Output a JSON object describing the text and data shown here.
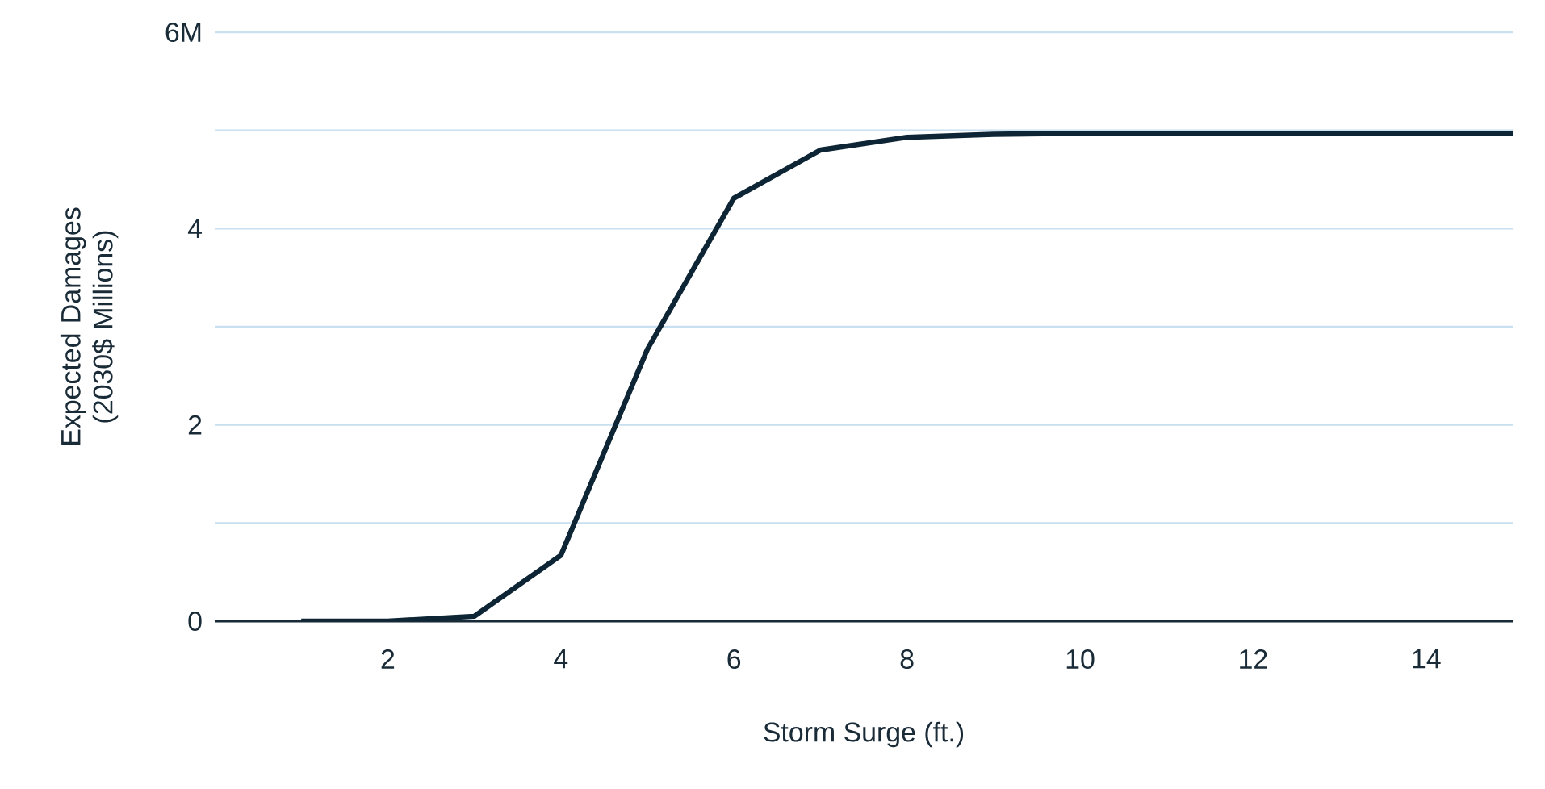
{
  "chart_data": {
    "type": "line",
    "xlabel": "Storm Surge (ft.)",
    "ylabel": "Expected Damages (2030$ Millions)",
    "x": [
      1,
      2,
      3,
      4,
      5,
      6,
      7,
      8,
      9,
      10,
      11,
      12,
      13,
      14,
      15
    ],
    "series": [
      {
        "color": "#0d2535",
        "values": [
          0,
          0,
          0.05,
          0.67,
          2.77,
          4.31,
          4.8,
          4.93,
          4.96,
          4.97,
          4.97,
          4.97,
          4.97,
          4.97,
          4.97
        ]
      }
    ],
    "xlim": [
      0,
      15
    ],
    "xticks": [
      2,
      4,
      6,
      8,
      10,
      12,
      14
    ],
    "ylim": [
      0,
      6
    ],
    "yticks": [
      0,
      {
        "value": 1,
        "label": null
      },
      2,
      {
        "value": 3,
        "label": null
      },
      4,
      {
        "value": 5,
        "label": null
      },
      {
        "value": 6,
        "label": "6M"
      }
    ],
    "grid": "y",
    "marker": "none",
    "line_style": "solid"
  }
}
